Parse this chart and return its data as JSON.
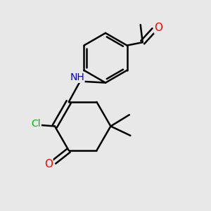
{
  "background_color": "#e8e8e8",
  "atom_colors": {
    "C": "#000000",
    "N": "#0000cc",
    "O": "#ff0000",
    "Cl": "#00bb00",
    "H": "#0000cc"
  },
  "bond_color": "#000000",
  "bond_width": 1.8,
  "font_size": 10,
  "fig_size": [
    3.0,
    3.0
  ],
  "dpi": 100,
  "xlim": [
    0,
    10
  ],
  "ylim": [
    0,
    10
  ]
}
